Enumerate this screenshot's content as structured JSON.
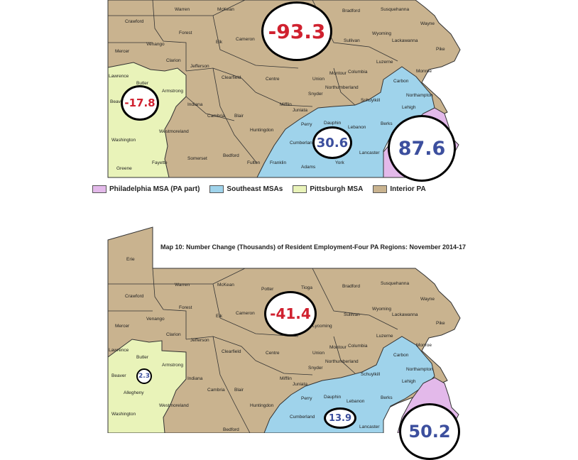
{
  "colors": {
    "philadelphia": "#e3b9ea",
    "southeast": "#9fd3eb",
    "pittsburgh": "#e9f3b9",
    "interior": "#c9b38f",
    "negative": "#d0212f",
    "positive": "#3c4f9e"
  },
  "legend": [
    {
      "label": "Philadelphia MSA (PA part)",
      "color": "#e3b9ea"
    },
    {
      "label": "Southeast MSAs",
      "color": "#9fd3eb"
    },
    {
      "label": "Pittsburgh MSA",
      "color": "#e9f3b9"
    },
    {
      "label": "Interior PA",
      "color": "#c9b38f"
    }
  ],
  "map1": {
    "values": {
      "interior": "-93.3",
      "pittsburgh": "-17.8",
      "southeast": "30.6",
      "philadelphia": "87.6"
    },
    "counties": [
      "Warren",
      "McKean",
      "Bradford",
      "Susquehanna",
      "Crawford",
      "Wayne",
      "Forest",
      "Elk",
      "Cameron",
      "Wyoming",
      "Sullivan",
      "Lackawanna",
      "Venango",
      "Mercer",
      "Pike",
      "Clarion",
      "Jefferson",
      "Luzerne",
      "Lawrence",
      "Monroe",
      "Union",
      "Montour",
      "Columbia",
      "Clearfield",
      "Centre",
      "Carbon",
      "Butler",
      "Armstrong",
      "Northumberland",
      "Snyder",
      "Northampton",
      "Schuylkill",
      "Beaver",
      "Indiana",
      "Mifflin",
      "Lehigh",
      "Juniata",
      "Cambria",
      "Blair",
      "Perry",
      "Dauphin",
      "Lebanon",
      "Berks",
      "Washington",
      "Huntingdon",
      "Westmoreland",
      "Cumberland",
      "Lancaster",
      "Somerset",
      "Bedford",
      "Fulton",
      "Franklin",
      "Adams",
      "York",
      "Fayette",
      "Greene"
    ]
  },
  "map2": {
    "title": "Map 10: Number Change (Thousands) of Resident Employment-Four PA Regions: November 2014-17",
    "values": {
      "interior": "-41.4",
      "pittsburgh": "2.3",
      "southeast": "13.9",
      "philadelphia": "50.2"
    },
    "counties": [
      "Erie",
      "Warren",
      "McKean",
      "Potter",
      "Tioga",
      "Bradford",
      "Susquehanna",
      "Crawford",
      "Forest",
      "Wayne",
      "Elk",
      "Cameron",
      "Wyoming",
      "Sullivan",
      "Lackawanna",
      "Venango",
      "Mercer",
      "Pike",
      "Clarion",
      "Jefferson",
      "Lycoming",
      "Luzerne",
      "Lawrence",
      "Monroe",
      "Union",
      "Montour",
      "Columbia",
      "Butler",
      "Clearfield",
      "Centre",
      "Carbon",
      "Armstrong",
      "Northumberland",
      "Snyder",
      "Beaver",
      "Northampton",
      "Schuylkill",
      "Indiana",
      "Mifflin",
      "Juniata",
      "Lehigh",
      "Allegheny",
      "Cambria",
      "Blair",
      "Perry",
      "Dauphin",
      "Lebanon",
      "Berks",
      "Huntingdon",
      "Washington",
      "Westmoreland",
      "Cumberland",
      "Lancaster",
      "Bedford"
    ]
  }
}
